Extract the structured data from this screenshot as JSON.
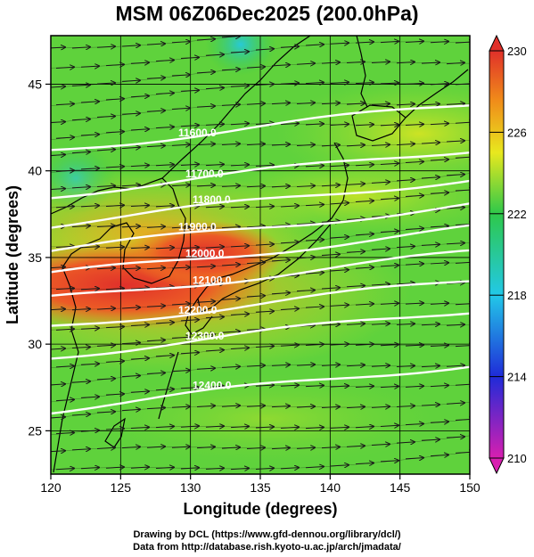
{
  "title": "MSM 06Z06Dec2025 (200.0hPa)",
  "x_axis": {
    "label": "Longitude (degrees)",
    "ticks": [
      "120",
      "125",
      "130",
      "135",
      "140",
      "145",
      "150"
    ],
    "range": [
      120,
      150
    ]
  },
  "y_axis": {
    "label": "Latitude  (degrees)",
    "ticks": [
      "25",
      "30",
      "35",
      "40",
      "45"
    ],
    "range": [
      22.5,
      47.8
    ]
  },
  "colorbar": {
    "ticks": [
      "210",
      "214",
      "218",
      "222",
      "226",
      "230"
    ],
    "range": [
      210,
      230
    ],
    "colors": [
      "#d81fb0",
      "#1f2bd8",
      "#22c8e8",
      "#2ec84a",
      "#e8e81e",
      "#f08a1a",
      "#e0302a"
    ]
  },
  "contours": [
    {
      "label": "11600.0",
      "lat": 41.2
    },
    {
      "label": "11700.0",
      "lat": 38.6
    },
    {
      "label": "11800.0",
      "lat": 36.9
    },
    {
      "label": "11900.0",
      "lat": 35.4
    },
    {
      "label": "12000.0",
      "lat": 34.0
    },
    {
      "label": "12100.0",
      "lat": 32.6
    },
    {
      "label": "12200.0",
      "lat": 31.0
    },
    {
      "label": "12300.0",
      "lat": 29.3
    },
    {
      "label": "12400.0",
      "lat": 26.2
    }
  ],
  "credits": {
    "line1": "Drawing by DCL (https://www.gfd-dennou.org/library/dcl/)",
    "line2": "Data from http://database.rish.kyoto-u.ac.jp/arch/jmadata/"
  }
}
